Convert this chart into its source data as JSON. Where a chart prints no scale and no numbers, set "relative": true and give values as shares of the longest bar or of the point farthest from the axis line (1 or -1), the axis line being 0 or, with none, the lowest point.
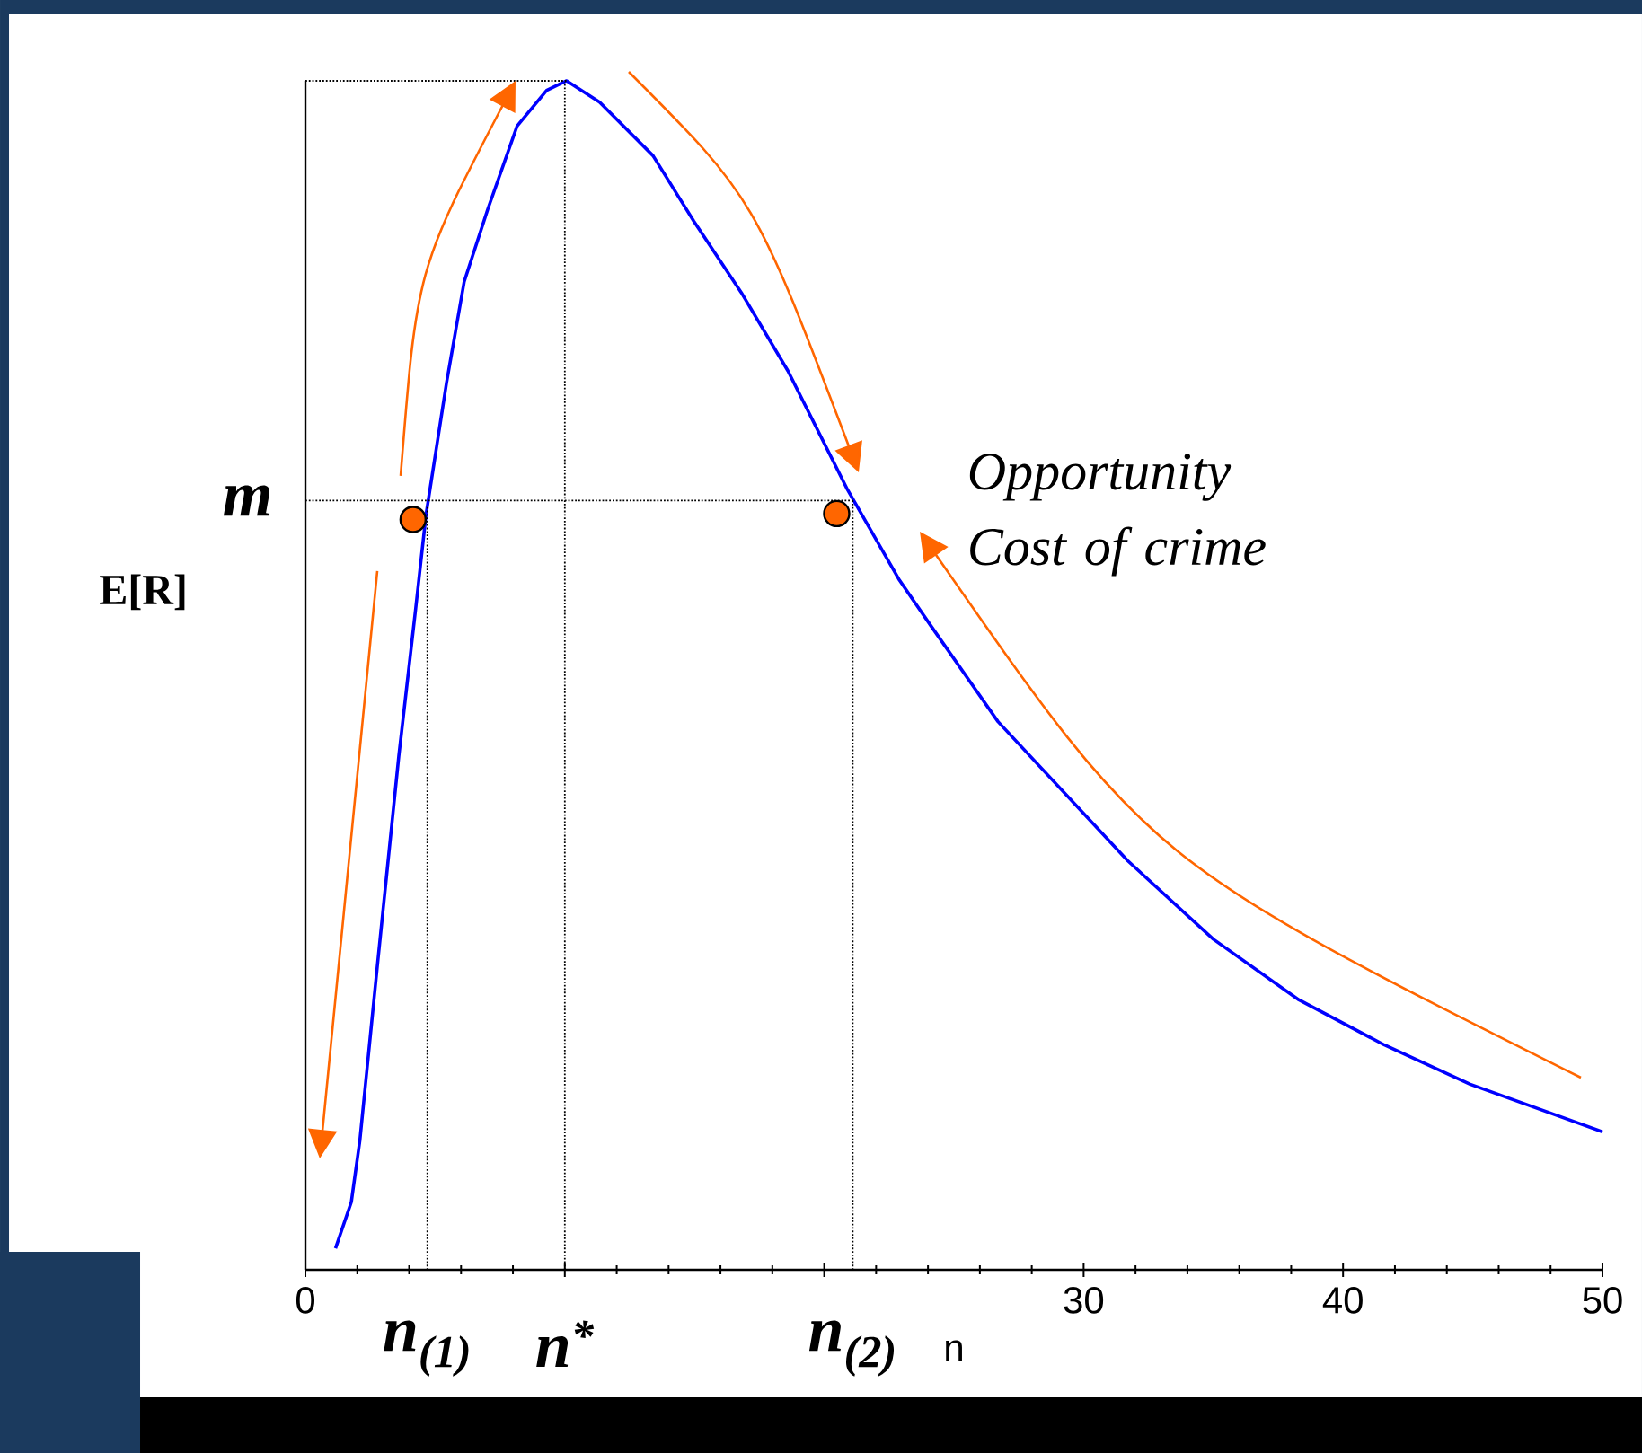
{
  "chart_data": {
    "type": "line",
    "xlabel": "n",
    "ylabel": "E[R]",
    "relative": true,
    "xlim": [
      0,
      50
    ],
    "xticks": [
      0,
      {
        "value": 10,
        "label": null
      },
      {
        "value": 20,
        "label": null
      },
      30,
      40,
      50
    ],
    "tick_labels": "x",
    "grid": false,
    "series": [
      {
        "color": "#0000ff",
        "x": [
          1.16,
          1.77,
          2.1,
          2.77,
          3.6,
          4.25,
          4.65,
          5.44,
          6.12,
          7.03,
          8.16,
          9.3,
          10.07,
          11.34,
          13.4,
          14.97,
          16.8,
          18.6,
          20.9,
          22.9,
          24.1,
          26.7,
          31.7,
          35.0,
          38.3,
          41.6,
          44.9,
          50
        ],
        "values": [
          0.018,
          0.057,
          0.109,
          0.255,
          0.432,
          0.556,
          0.635,
          0.746,
          0.831,
          0.892,
          0.962,
          0.992,
          1,
          0.982,
          0.937,
          0.882,
          0.822,
          0.756,
          0.656,
          0.58,
          0.542,
          0.461,
          0.344,
          0.278,
          0.227,
          0.189,
          0.156,
          0.116
        ]
      },
      {
        "type": "scatter",
        "color": "#ff6600",
        "x": [
          4.15,
          20.48
        ],
        "values": [
          0.631,
          0.636
        ]
      }
    ],
    "ref_lines": [
      {
        "axis": "y",
        "value": 0.647,
        "label": "m",
        "color": "#000000",
        "line_style": "dotted"
      },
      {
        "axis": "y",
        "value": 1,
        "color": "#000000",
        "line_style": "dotted"
      },
      {
        "axis": "x",
        "value": 4.7,
        "label": "n$_{(1)}$",
        "color": "#000000",
        "line_style": "dotted"
      },
      {
        "axis": "x",
        "value": 10,
        "label": "n$^{*}$",
        "color": "#000000",
        "line_style": "dotted"
      },
      {
        "axis": "x",
        "value": 21.1,
        "label": "n$_{(2)}$",
        "color": "#000000",
        "line_style": "dotted"
      }
    ],
    "annotations": [
      "Opportunity Cost of crime"
    ]
  }
}
